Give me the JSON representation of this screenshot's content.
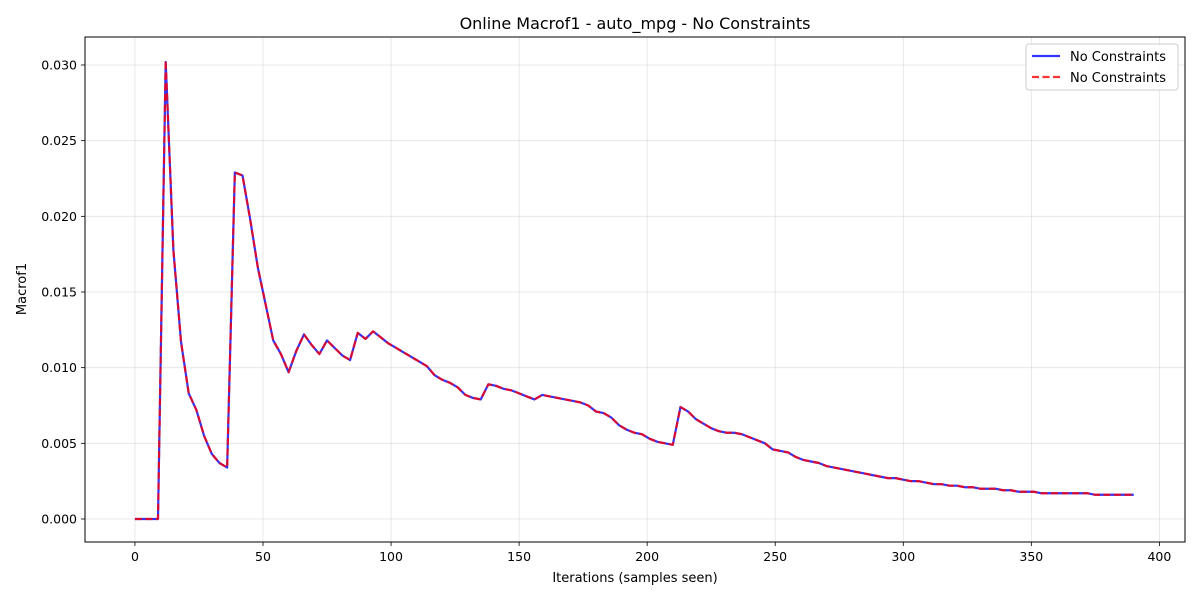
{
  "chart_data": {
    "type": "line",
    "title": "Online Macrof1 - auto_mpg - No Constraints",
    "xlabel": "Iterations (samples seen)",
    "ylabel": "Macrof1",
    "xlim": [
      -19.5,
      410
    ],
    "ylim": [
      -0.00152,
      0.03185
    ],
    "xticks": [
      0,
      50,
      100,
      150,
      200,
      250,
      300,
      350,
      400
    ],
    "xtick_labels": [
      "0",
      "50",
      "100",
      "150",
      "200",
      "250",
      "300",
      "350",
      "400"
    ],
    "yticks": [
      0.0,
      0.005,
      0.01,
      0.015,
      0.02,
      0.025,
      0.03
    ],
    "ytick_labels": [
      "0.000",
      "0.005",
      "0.010",
      "0.015",
      "0.020",
      "0.025",
      "0.030"
    ],
    "grid": true,
    "legend_position": "top-right",
    "series": [
      {
        "name": "No Constraints",
        "color": "#0000ff",
        "style": "solid",
        "x": [
          0,
          3,
          6,
          9,
          12,
          15,
          18,
          21,
          24,
          27,
          30,
          33,
          36,
          39,
          42,
          45,
          48,
          51,
          54,
          57,
          60,
          63,
          66,
          69,
          72,
          75,
          78,
          81,
          84,
          87,
          90,
          93,
          96,
          99,
          102,
          105,
          108,
          111,
          114,
          117,
          120,
          123,
          126,
          129,
          132,
          135,
          138,
          141,
          144,
          147,
          150,
          153,
          156,
          159,
          162,
          165,
          168,
          171,
          174,
          177,
          180,
          183,
          186,
          189,
          192,
          195,
          198,
          201,
          204,
          207,
          210,
          213,
          216,
          219,
          222,
          225,
          228,
          231,
          234,
          237,
          240,
          243,
          246,
          249,
          252,
          255,
          258,
          261,
          264,
          267,
          270,
          273,
          276,
          279,
          282,
          285,
          288,
          291,
          294,
          297,
          300,
          303,
          306,
          309,
          312,
          315,
          318,
          321,
          324,
          327,
          330,
          333,
          336,
          339,
          342,
          345,
          348,
          351,
          354,
          357,
          360,
          363,
          366,
          369,
          372,
          375,
          378,
          381,
          384,
          387,
          390
        ],
        "values": [
          0.0,
          0.0,
          0.0,
          0.0,
          0.0302,
          0.0178,
          0.0117,
          0.0083,
          0.0072,
          0.0055,
          0.0043,
          0.0037,
          0.0034,
          0.0229,
          0.0227,
          0.0198,
          0.0166,
          0.0142,
          0.0118,
          0.0109,
          0.0097,
          0.0111,
          0.0122,
          0.0115,
          0.0109,
          0.0118,
          0.0113,
          0.0108,
          0.0105,
          0.0123,
          0.0119,
          0.0124,
          0.012,
          0.0116,
          0.0113,
          0.011,
          0.0107,
          0.0104,
          0.0101,
          0.0095,
          0.0092,
          0.009,
          0.0087,
          0.0082,
          0.008,
          0.0079,
          0.0089,
          0.0088,
          0.0086,
          0.0085,
          0.0083,
          0.0081,
          0.0079,
          0.0082,
          0.0081,
          0.008,
          0.0079,
          0.0078,
          0.0077,
          0.0075,
          0.0071,
          0.007,
          0.0067,
          0.0062,
          0.0059,
          0.0057,
          0.0056,
          0.0053,
          0.0051,
          0.005,
          0.0049,
          0.0074,
          0.0071,
          0.0066,
          0.0063,
          0.006,
          0.0058,
          0.0057,
          0.0057,
          0.0056,
          0.0054,
          0.0052,
          0.005,
          0.0046,
          0.0045,
          0.0044,
          0.0041,
          0.0039,
          0.0038,
          0.0037,
          0.0035,
          0.0034,
          0.0033,
          0.0032,
          0.0031,
          0.003,
          0.0029,
          0.0028,
          0.0027,
          0.0027,
          0.0026,
          0.0025,
          0.0025,
          0.0024,
          0.0023,
          0.0023,
          0.0022,
          0.0022,
          0.0021,
          0.0021,
          0.002,
          0.002,
          0.002,
          0.0019,
          0.0019,
          0.0018,
          0.0018,
          0.0018,
          0.0017,
          0.0017,
          0.0017,
          0.0017,
          0.0017,
          0.0017,
          0.0017,
          0.0016,
          0.0016,
          0.0016,
          0.0016,
          0.0016,
          0.0016
        ]
      },
      {
        "name": "No Constraints",
        "color": "#ff0000",
        "style": "dashed",
        "x": [
          0,
          3,
          6,
          9,
          12,
          15,
          18,
          21,
          24,
          27,
          30,
          33,
          36,
          39,
          42,
          45,
          48,
          51,
          54,
          57,
          60,
          63,
          66,
          69,
          72,
          75,
          78,
          81,
          84,
          87,
          90,
          93,
          96,
          99,
          102,
          105,
          108,
          111,
          114,
          117,
          120,
          123,
          126,
          129,
          132,
          135,
          138,
          141,
          144,
          147,
          150,
          153,
          156,
          159,
          162,
          165,
          168,
          171,
          174,
          177,
          180,
          183,
          186,
          189,
          192,
          195,
          198,
          201,
          204,
          207,
          210,
          213,
          216,
          219,
          222,
          225,
          228,
          231,
          234,
          237,
          240,
          243,
          246,
          249,
          252,
          255,
          258,
          261,
          264,
          267,
          270,
          273,
          276,
          279,
          282,
          285,
          288,
          291,
          294,
          297,
          300,
          303,
          306,
          309,
          312,
          315,
          318,
          321,
          324,
          327,
          330,
          333,
          336,
          339,
          342,
          345,
          348,
          351,
          354,
          357,
          360,
          363,
          366,
          369,
          372,
          375,
          378,
          381,
          384,
          387,
          390
        ],
        "values": [
          0.0,
          0.0,
          0.0,
          0.0,
          0.0303,
          0.0178,
          0.0117,
          0.0083,
          0.0072,
          0.0055,
          0.0043,
          0.0037,
          0.0034,
          0.0229,
          0.0227,
          0.0198,
          0.0166,
          0.0142,
          0.0118,
          0.0109,
          0.0097,
          0.0111,
          0.0122,
          0.0115,
          0.0109,
          0.0118,
          0.0113,
          0.0108,
          0.0105,
          0.0123,
          0.0119,
          0.0124,
          0.012,
          0.0116,
          0.0113,
          0.011,
          0.0107,
          0.0104,
          0.0101,
          0.0095,
          0.0092,
          0.009,
          0.0087,
          0.0082,
          0.008,
          0.0079,
          0.0089,
          0.0088,
          0.0086,
          0.0085,
          0.0083,
          0.0081,
          0.0079,
          0.0082,
          0.0081,
          0.008,
          0.0079,
          0.0078,
          0.0077,
          0.0075,
          0.0071,
          0.007,
          0.0067,
          0.0062,
          0.0059,
          0.0057,
          0.0056,
          0.0053,
          0.0051,
          0.005,
          0.0049,
          0.0074,
          0.0071,
          0.0066,
          0.0063,
          0.006,
          0.0058,
          0.0057,
          0.0057,
          0.0056,
          0.0054,
          0.0052,
          0.005,
          0.0046,
          0.0045,
          0.0044,
          0.0041,
          0.0039,
          0.0038,
          0.0037,
          0.0035,
          0.0034,
          0.0033,
          0.0032,
          0.0031,
          0.003,
          0.0029,
          0.0028,
          0.0027,
          0.0027,
          0.0026,
          0.0025,
          0.0025,
          0.0024,
          0.0023,
          0.0023,
          0.0022,
          0.0022,
          0.0021,
          0.0021,
          0.002,
          0.002,
          0.002,
          0.0019,
          0.0019,
          0.0018,
          0.0018,
          0.0018,
          0.0017,
          0.0017,
          0.0017,
          0.0017,
          0.0017,
          0.0017,
          0.0017,
          0.0016,
          0.0016,
          0.0016,
          0.0016,
          0.0016,
          0.0016
        ]
      }
    ]
  }
}
